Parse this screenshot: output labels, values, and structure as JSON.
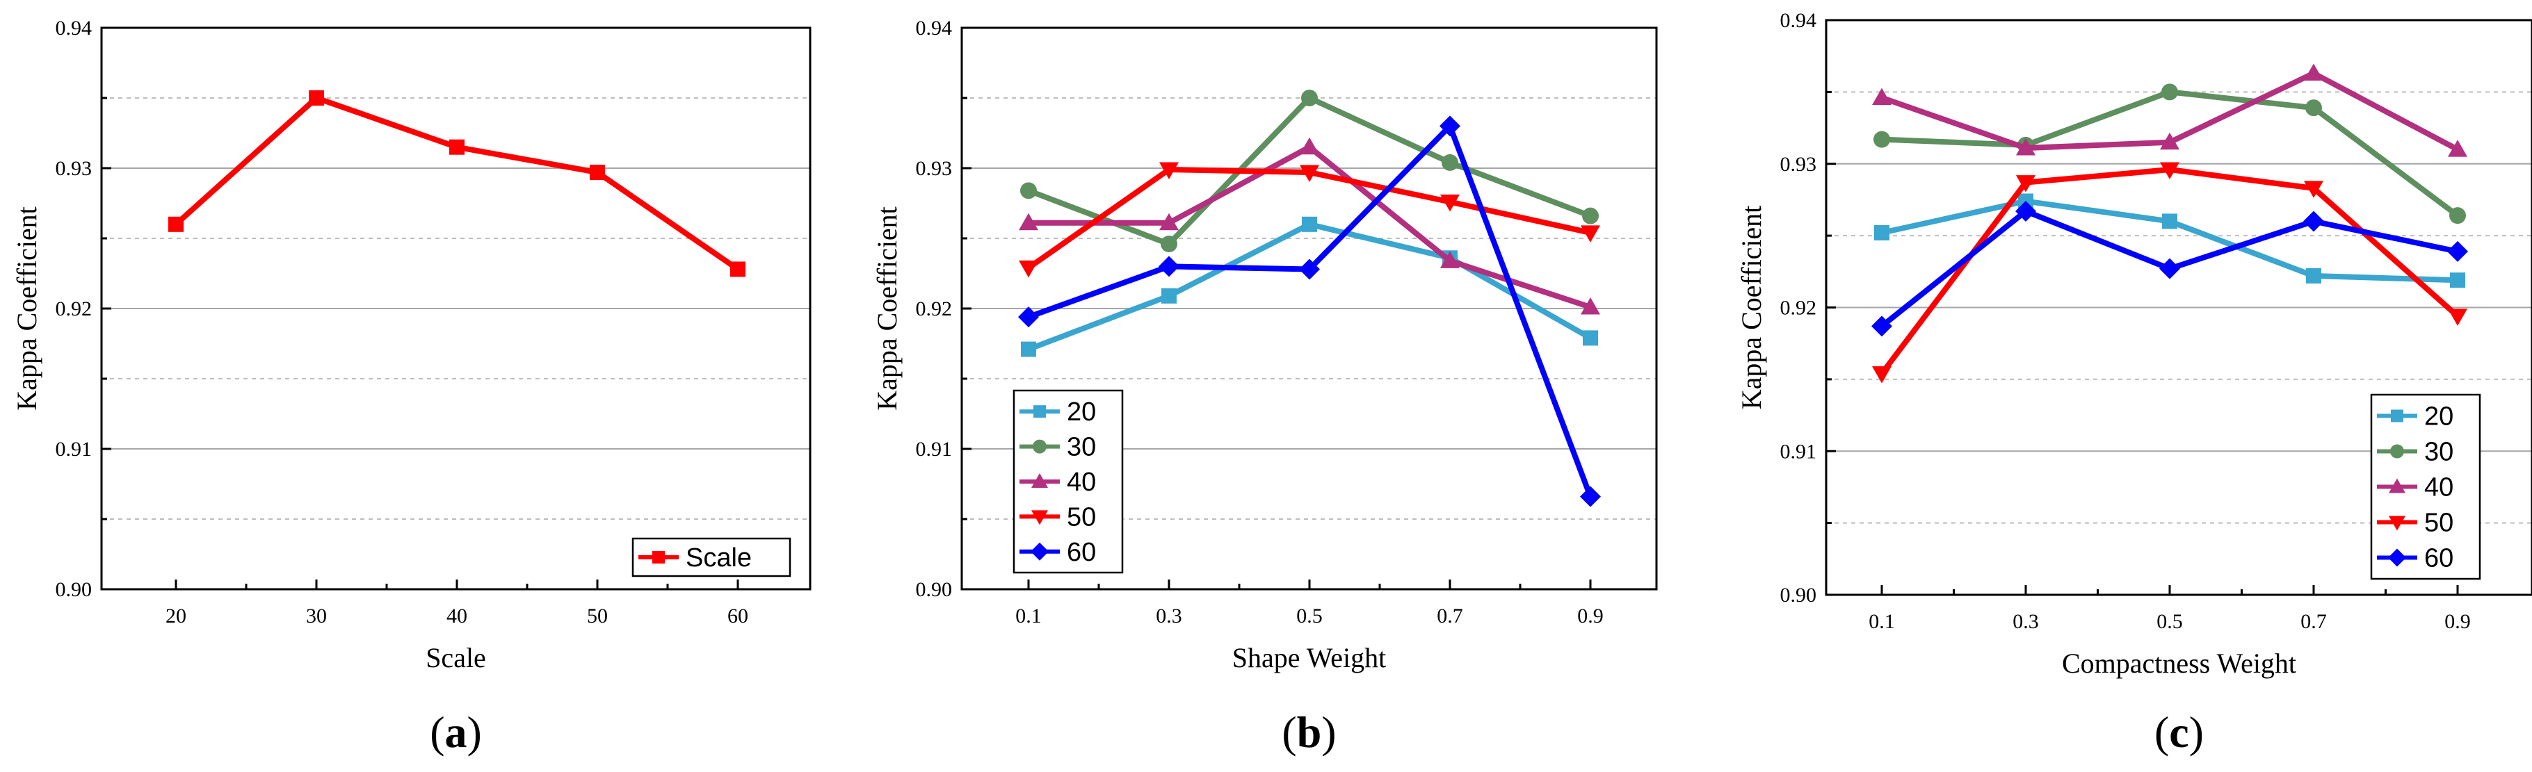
{
  "chart_data": [
    {
      "type": "line",
      "panel_label": "a",
      "xlabel": "Scale",
      "ylabel": "Kappa Coefficient",
      "categories": [
        "20",
        "30",
        "40",
        "50",
        "60"
      ],
      "ylim": [
        0.9,
        0.94
      ],
      "y_ticks": [
        "0.90",
        "0.91",
        "0.92",
        "0.93",
        "0.94"
      ],
      "legend_position": "bottom-right",
      "series": [
        {
          "name": "Scale",
          "color": "#ff0000",
          "marker": "square",
          "values": [
            0.926,
            0.935,
            0.9315,
            0.9297,
            0.9228
          ]
        }
      ]
    },
    {
      "type": "line",
      "panel_label": "b",
      "xlabel": "Shape Weight",
      "ylabel": "Kappa Coefficient",
      "categories": [
        "0.1",
        "0.3",
        "0.5",
        "0.7",
        "0.9"
      ],
      "ylim": [
        0.9,
        0.94
      ],
      "y_ticks": [
        "0.90",
        "0.91",
        "0.92",
        "0.93",
        "0.94"
      ],
      "legend_position": "bottom-left",
      "series": [
        {
          "name": "20",
          "color": "#3aa5cf",
          "marker": "square",
          "values": [
            0.9171,
            0.9209,
            0.926,
            0.9236,
            0.9179
          ]
        },
        {
          "name": "30",
          "color": "#5e8f5e",
          "marker": "circle",
          "values": [
            0.9284,
            0.9246,
            0.935,
            0.9304,
            0.9266
          ]
        },
        {
          "name": "40",
          "color": "#b2307f",
          "marker": "triangle-up",
          "values": [
            0.9261,
            0.9261,
            0.9315,
            0.9234,
            0.9201
          ]
        },
        {
          "name": "50",
          "color": "#ff0000",
          "marker": "triangle-down",
          "values": [
            0.9229,
            0.9299,
            0.9297,
            0.9276,
            0.9254
          ]
        },
        {
          "name": "60",
          "color": "#0000ff",
          "marker": "diamond",
          "values": [
            0.9194,
            0.923,
            0.9228,
            0.933,
            0.9066
          ]
        }
      ]
    },
    {
      "type": "line",
      "panel_label": "c",
      "xlabel": "Compactness Weight",
      "ylabel": "Kappa Coefficient",
      "categories": [
        "0.1",
        "0.3",
        "0.5",
        "0.7",
        "0.9"
      ],
      "ylim": [
        0.9,
        0.94
      ],
      "y_ticks": [
        "0.90",
        "0.91",
        "0.92",
        "0.93",
        "0.94"
      ],
      "legend_position": "bottom-right",
      "series": [
        {
          "name": "20",
          "color": "#3aa5cf",
          "marker": "square",
          "values": [
            0.9252,
            0.9274,
            0.926,
            0.9222,
            0.9219
          ]
        },
        {
          "name": "30",
          "color": "#5e8f5e",
          "marker": "circle",
          "values": [
            0.9317,
            0.9313,
            0.935,
            0.9339,
            0.9264
          ]
        },
        {
          "name": "40",
          "color": "#b2307f",
          "marker": "triangle-up",
          "values": [
            0.9346,
            0.9311,
            0.9315,
            0.9363,
            0.931
          ]
        },
        {
          "name": "50",
          "color": "#ff0000",
          "marker": "triangle-down",
          "values": [
            0.9154,
            0.9287,
            0.9296,
            0.9283,
            0.9194
          ]
        },
        {
          "name": "60",
          "color": "#0000ff",
          "marker": "diamond",
          "values": [
            0.9187,
            0.9267,
            0.9227,
            0.926,
            0.9239
          ]
        }
      ]
    }
  ]
}
